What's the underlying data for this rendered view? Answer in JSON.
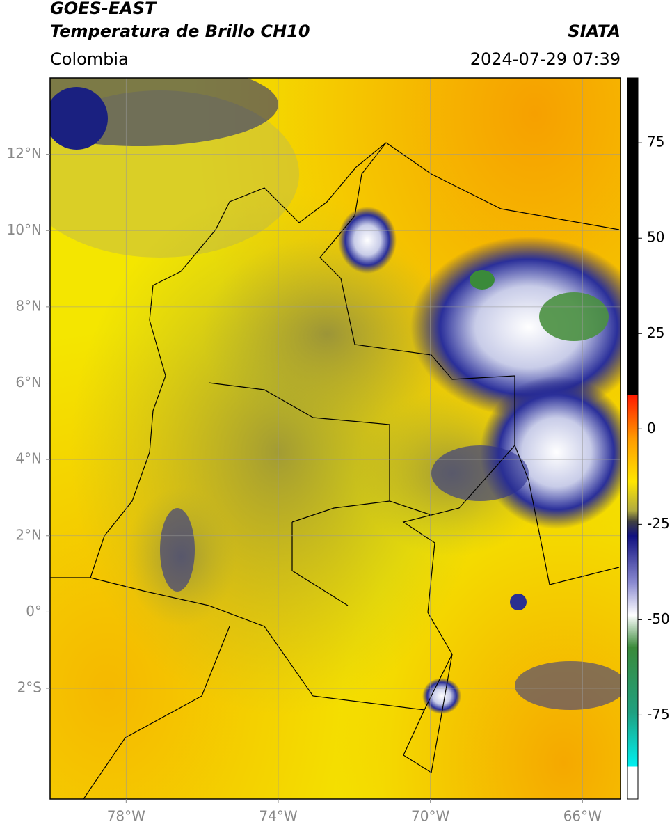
{
  "header": {
    "title": "GOES-EAST",
    "subtitle": "Temperatura de Brillo CH10",
    "source": "SIATA",
    "region": "Colombia",
    "timestamp": "2024-07-29 07:39"
  },
  "map": {
    "xlim": [
      -80,
      -65
    ],
    "ylim": [
      -4.9,
      14
    ],
    "xticks": [
      {
        "value": -78,
        "label": "78°W"
      },
      {
        "value": -74,
        "label": "74°W"
      },
      {
        "value": -70,
        "label": "70°W"
      },
      {
        "value": -66,
        "label": "66°W"
      }
    ],
    "yticks": [
      {
        "value": 12,
        "label": "12°N"
      },
      {
        "value": 10,
        "label": "10°N"
      },
      {
        "value": 8,
        "label": "8°N"
      },
      {
        "value": 6,
        "label": "6°N"
      },
      {
        "value": 4,
        "label": "4°N"
      },
      {
        "value": 2,
        "label": "2°N"
      },
      {
        "value": 0,
        "label": "0°"
      },
      {
        "value": -2,
        "label": "2°S"
      }
    ],
    "grid": true
  },
  "colorbar": {
    "lim": [
      -97,
      92
    ],
    "ticks": [
      75,
      50,
      25,
      0,
      -25,
      -50,
      -75
    ]
  }
}
